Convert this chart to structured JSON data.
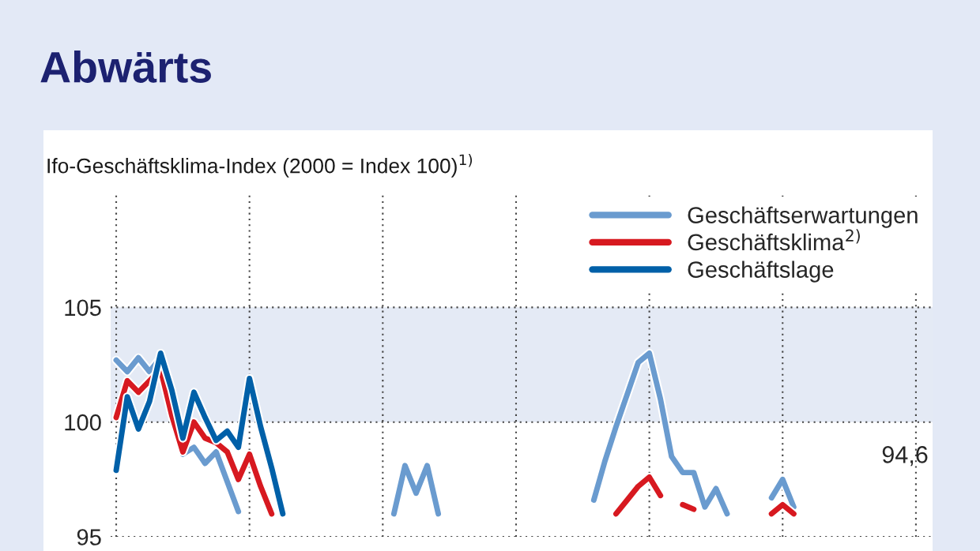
{
  "chart_data": {
    "type": "line",
    "title": "Abwärts",
    "subtitle": "Ifo-Geschäftsklima-Index (2000 = Index 100)$^{1)}$",
    "categories": [
      null,
      null,
      null,
      null,
      null,
      null,
      null,
      null,
      null,
      null,
      null,
      null,
      null,
      null,
      null,
      null,
      null,
      null,
      null,
      null,
      null,
      null,
      null,
      null,
      null,
      null,
      null,
      null,
      null,
      null,
      null,
      null,
      null,
      null,
      null,
      null,
      null,
      null,
      null,
      null,
      null,
      null,
      null,
      null,
      null,
      null,
      null,
      null,
      null,
      null,
      null,
      null,
      null,
      null,
      null,
      null,
      null,
      null,
      null,
      null,
      null,
      null,
      null,
      null,
      null,
      null,
      null,
      null,
      null,
      null,
      null,
      null,
      null,
      null
    ],
    "series": [
      {
        "name": "Geschäftserwartungen",
        "color": "#6a9bcf",
        "values": [
          102.7,
          102.2,
          102.8,
          102.2,
          102.8,
          100.5,
          98.6,
          98.9,
          98.2,
          98.7,
          97.4,
          96.1,
          null,
          null,
          null,
          null,
          null,
          null,
          null,
          null,
          null,
          null,
          null,
          null,
          null,
          96.0,
          98.1,
          96.9,
          98.1,
          96.0,
          null,
          null,
          null,
          null,
          null,
          null,
          null,
          null,
          null,
          null,
          null,
          null,
          null,
          96.6,
          98.3,
          99.8,
          101.2,
          102.6,
          103.0,
          101.0,
          98.5,
          97.8,
          97.8,
          96.3,
          97.1,
          96.0,
          null,
          null,
          null,
          96.7,
          97.5,
          96.3,
          null,
          null,
          null,
          null,
          null,
          null,
          null,
          null,
          null,
          null,
          null,
          null
        ]
      },
      {
        "name": "Geschäftsklima$^{2)}$",
        "color": "#d71920",
        "values": [
          100.2,
          101.8,
          101.3,
          101.8,
          102.3,
          100.3,
          98.7,
          100.0,
          99.3,
          99.1,
          98.7,
          97.5,
          98.6,
          97.2,
          96.0,
          null,
          null,
          null,
          null,
          null,
          null,
          null,
          null,
          null,
          null,
          null,
          null,
          null,
          null,
          null,
          null,
          null,
          null,
          null,
          null,
          null,
          null,
          null,
          null,
          null,
          null,
          null,
          null,
          null,
          null,
          96.0,
          96.6,
          97.2,
          97.6,
          96.8,
          null,
          96.4,
          96.2,
          null,
          null,
          null,
          null,
          null,
          null,
          96.0,
          96.4,
          96.0,
          null,
          null,
          null,
          null,
          null,
          null,
          null,
          null,
          null,
          null,
          null,
          null
        ]
      },
      {
        "name": "Geschäftslage",
        "color": "#0060a8",
        "values": [
          97.9,
          101.1,
          99.7,
          100.9,
          103.0,
          101.4,
          99.3,
          101.3,
          100.2,
          99.2,
          99.6,
          98.9,
          101.9,
          99.8,
          98.0,
          96.0,
          null,
          null,
          null,
          null,
          null,
          null,
          null,
          null,
          null,
          null,
          null,
          null,
          null,
          null,
          null,
          null,
          null,
          null,
          null,
          null,
          null,
          null,
          null,
          null,
          null,
          null,
          null,
          null,
          null,
          null,
          null,
          null,
          null,
          null,
          null,
          null,
          null,
          null,
          null,
          null,
          null,
          null,
          null,
          null,
          null,
          null,
          null,
          null,
          null,
          null,
          null,
          null,
          null,
          null,
          null,
          null,
          null,
          null
        ]
      }
    ],
    "ylim": [
      95,
      110
    ],
    "yticks": [
      95,
      100,
      105
    ],
    "tick_labels": "y",
    "bands": [
      {
        "axis": "y",
        "from": 100,
        "to": 105,
        "color": "#e4eaf5"
      }
    ],
    "annotations": [
      "94,6"
    ],
    "grid": true,
    "legend": "top right",
    "line_style": "solid",
    "marker": "none"
  }
}
